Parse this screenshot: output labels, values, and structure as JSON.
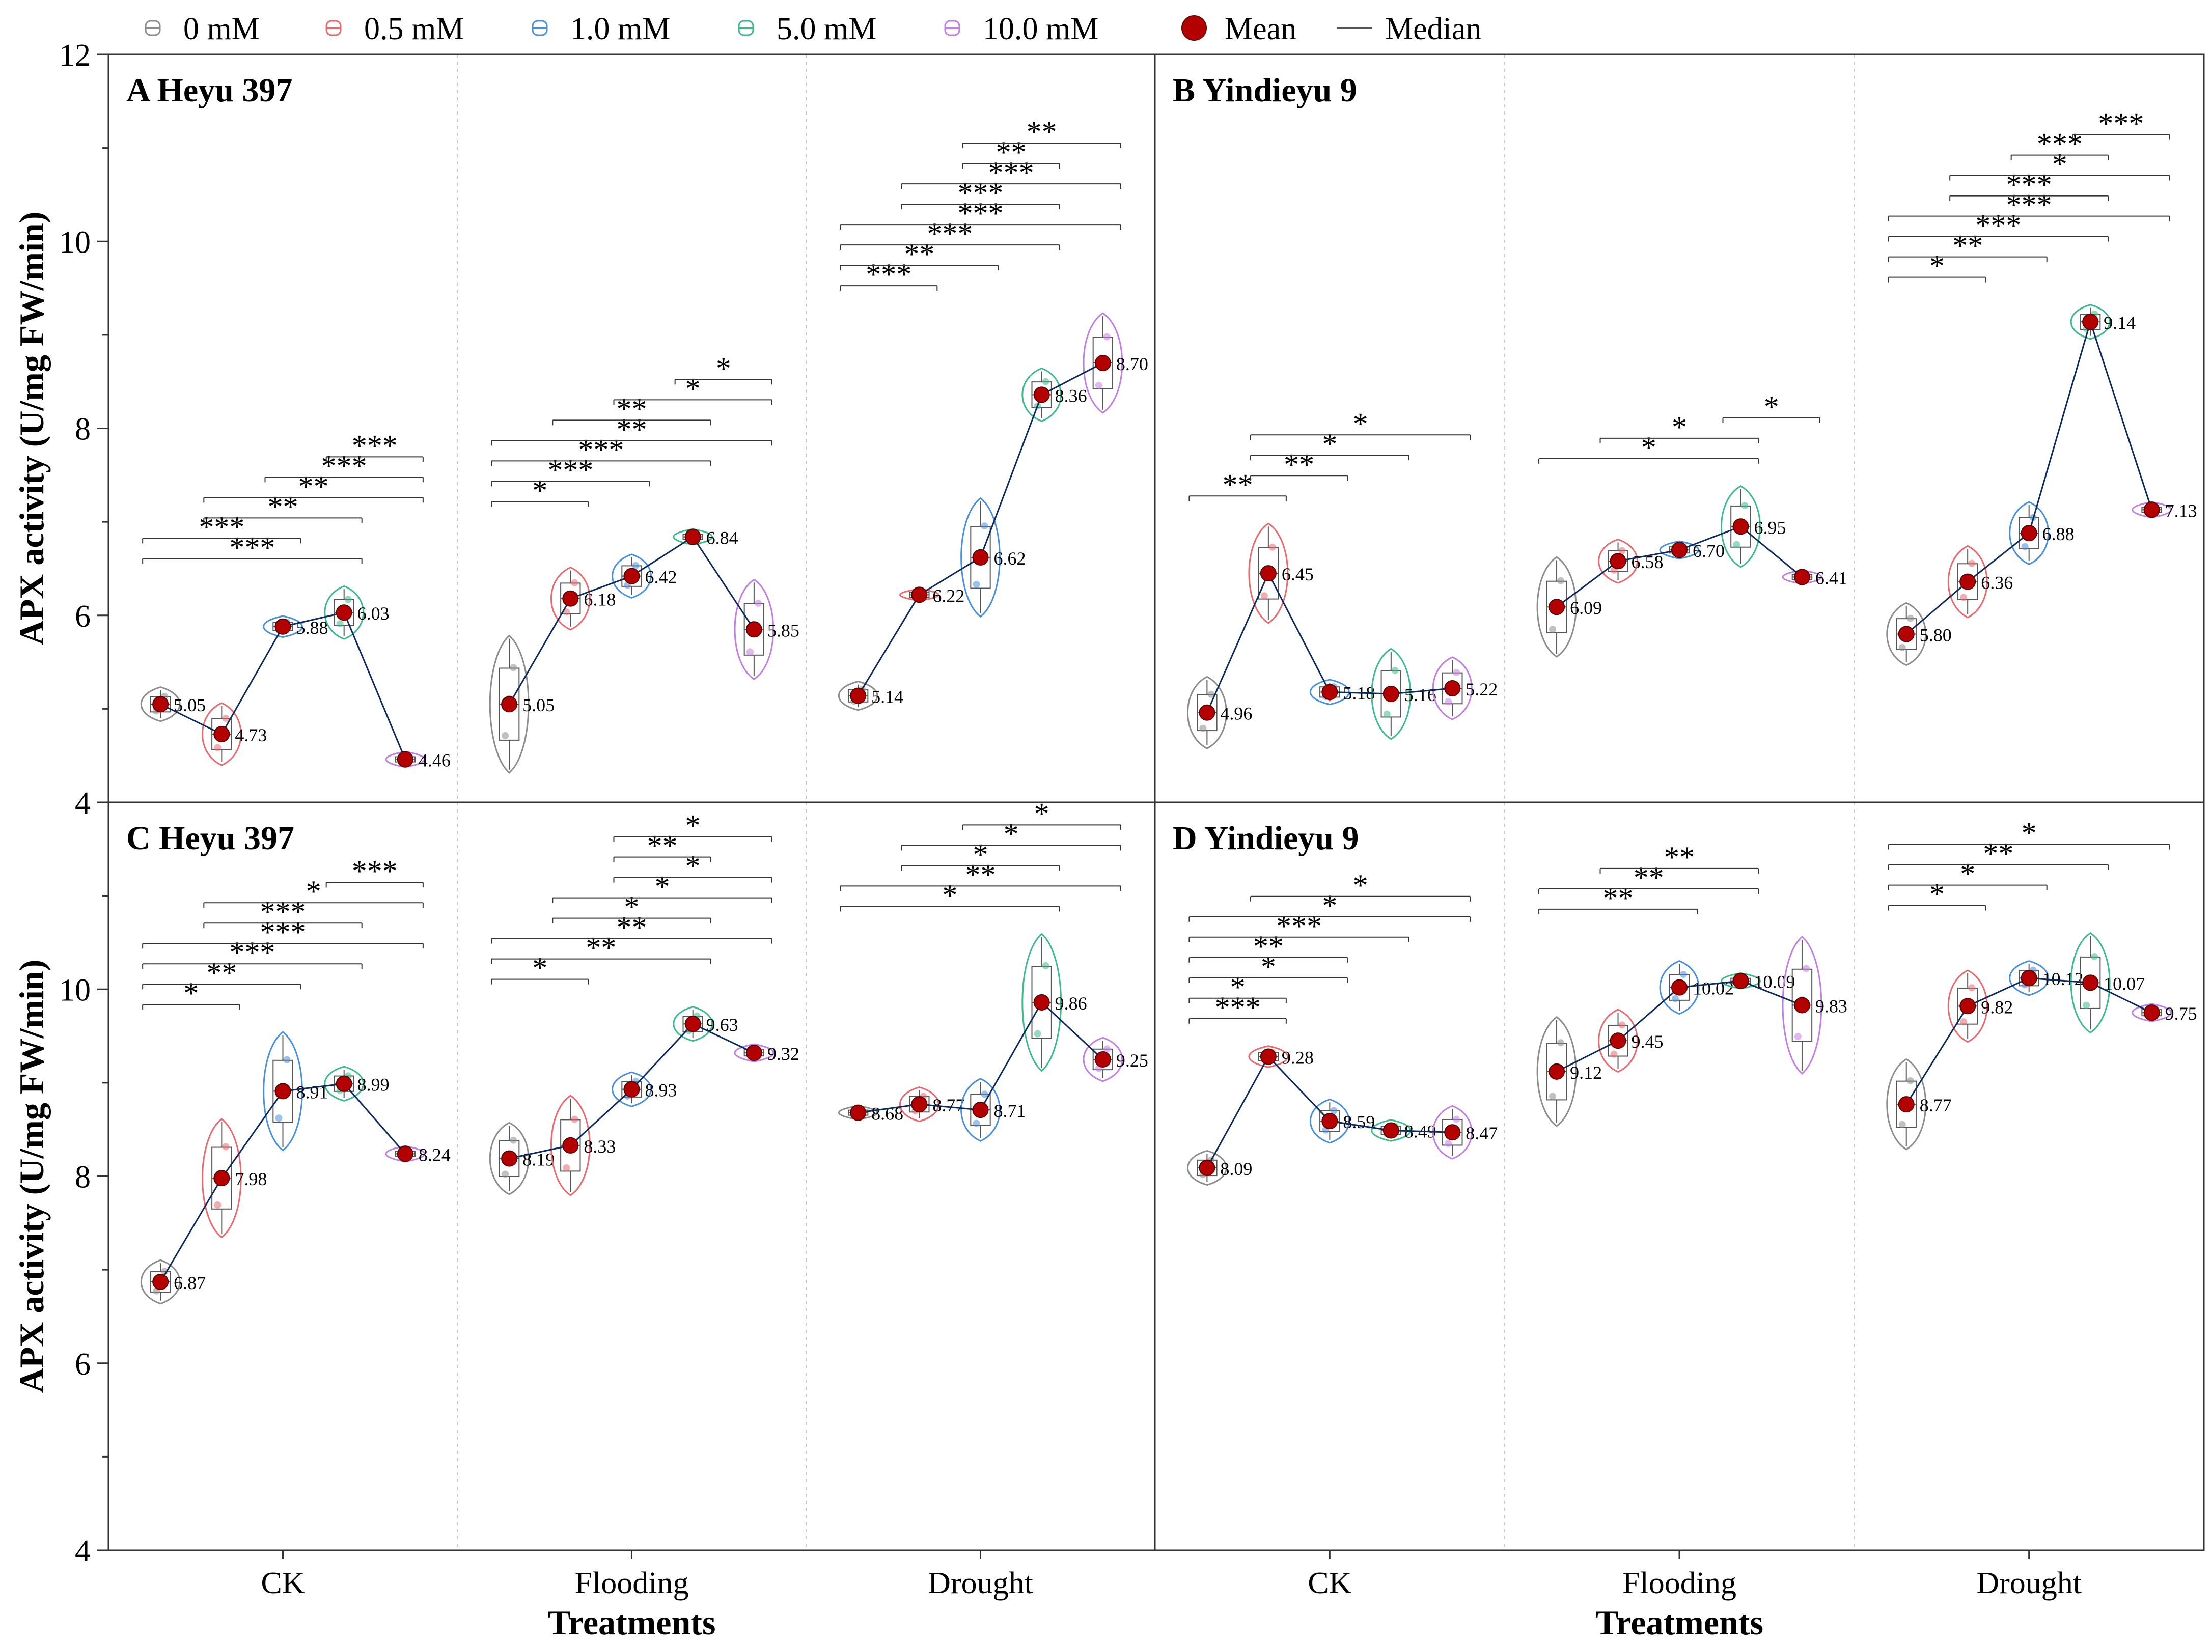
{
  "chart_data": {
    "type": "violin-box",
    "legend": {
      "position": "top",
      "items": [
        {
          "label": "0 mM",
          "color": "#8c8c8c"
        },
        {
          "label": "0.5 mM",
          "color": "#e8696f"
        },
        {
          "label": "1.0 mM",
          "color": "#4a90d9"
        },
        {
          "label": "5.0 mM",
          "color": "#3cba8c"
        },
        {
          "label": "10.0 mM",
          "color": "#c27ee0"
        },
        {
          "label": "Mean",
          "color": "#b30000"
        },
        {
          "label": "Median",
          "color": "#555555"
        }
      ]
    },
    "ylabel": "APX activity (U/mg FW/min)",
    "xlabel": "Treatments",
    "ylim": [
      4,
      12
    ],
    "yticks": [
      "4",
      "6",
      "8",
      "10",
      "12"
    ],
    "categories": [
      "CK",
      "Flooding",
      "Drought"
    ],
    "panels": [
      {
        "title": "A Heyu 397",
        "values": [
          [
            5.05,
            4.73,
            5.88,
            6.03,
            4.46
          ],
          [
            5.05,
            6.18,
            6.42,
            6.84,
            5.85
          ],
          [
            5.14,
            6.22,
            6.62,
            8.36,
            8.7
          ]
        ],
        "labels": [
          [
            "5.05",
            "4.73",
            "5.88",
            "6.03",
            "4.46"
          ],
          [
            "5.05",
            "6.18",
            "6.42",
            "6.84",
            "5.85"
          ],
          [
            "5.14",
            "6.22",
            "6.62",
            "8.36",
            "8.70"
          ]
        ],
        "spreads": [
          [
            0.15,
            0.3,
            0.08,
            0.25,
            0.05
          ],
          [
            0.7,
            0.3,
            0.2,
            0.05,
            0.5
          ],
          [
            0.12,
            0.03,
            0.6,
            0.25,
            0.5
          ]
        ],
        "significance": [
          [
            [
              0,
              3,
              "***"
            ],
            [
              0,
              2,
              "***"
            ],
            [
              1,
              3,
              "**"
            ],
            [
              1,
              4,
              "**"
            ],
            [
              2,
              4,
              "***"
            ],
            [
              3,
              4,
              "***"
            ]
          ],
          [
            [
              0,
              1,
              "*"
            ],
            [
              0,
              2,
              "***"
            ],
            [
              0,
              3,
              "***"
            ],
            [
              0,
              4,
              "**"
            ],
            [
              1,
              3,
              "**"
            ],
            [
              2,
              4,
              "*"
            ],
            [
              3,
              4,
              "*"
            ]
          ],
          [
            [
              0,
              1,
              "***"
            ],
            [
              0,
              2,
              "**"
            ],
            [
              0,
              3,
              "***"
            ],
            [
              0,
              4,
              "***"
            ],
            [
              1,
              3,
              "***"
            ],
            [
              1,
              4,
              "***"
            ],
            [
              2,
              3,
              "**"
            ],
            [
              2,
              4,
              "**"
            ]
          ]
        ]
      },
      {
        "title": "B Yindieyu 9",
        "values": [
          [
            4.96,
            6.45,
            5.18,
            5.16,
            5.22
          ],
          [
            6.09,
            6.58,
            6.7,
            6.95,
            6.41
          ],
          [
            5.8,
            6.36,
            6.88,
            9.14,
            7.13
          ]
        ],
        "labels": [
          [
            "4.96",
            "6.45",
            "5.18",
            "5.16",
            "5.22"
          ],
          [
            "6.09",
            "6.58",
            "6.70",
            "6.95",
            "6.41"
          ],
          [
            "5.80",
            "6.36",
            "6.88",
            "9.14",
            "7.13"
          ]
        ],
        "spreads": [
          [
            0.35,
            0.5,
            0.1,
            0.45,
            0.3
          ],
          [
            0.5,
            0.2,
            0.06,
            0.4,
            0.04
          ],
          [
            0.3,
            0.35,
            0.3,
            0.15,
            0.05
          ]
        ],
        "significance": [
          [
            [
              0,
              1,
              "**"
            ],
            [
              1,
              2,
              "**"
            ],
            [
              1,
              3,
              "*"
            ],
            [
              1,
              4,
              "*"
            ]
          ],
          [
            [
              0,
              3,
              "*"
            ],
            [
              1,
              3,
              "*"
            ],
            [
              3,
              4,
              "*"
            ]
          ],
          [
            [
              0,
              1,
              "*"
            ],
            [
              0,
              2,
              "**"
            ],
            [
              0,
              3,
              "***"
            ],
            [
              0,
              4,
              "***"
            ],
            [
              1,
              3,
              "***"
            ],
            [
              1,
              4,
              "*"
            ],
            [
              2,
              3,
              "***"
            ],
            [
              3,
              4,
              "***"
            ]
          ]
        ]
      },
      {
        "title": "C Heyu 397",
        "values": [
          [
            6.87,
            7.98,
            8.91,
            8.99,
            8.24
          ],
          [
            8.19,
            8.33,
            8.93,
            9.63,
            9.32
          ],
          [
            8.68,
            8.77,
            8.71,
            9.86,
            9.25
          ]
        ],
        "labels": [
          [
            "6.87",
            "7.98",
            "8.91",
            "8.99",
            "8.24"
          ],
          [
            "8.19",
            "8.33",
            "8.93",
            "9.63",
            "9.32"
          ],
          [
            "8.68",
            "8.77",
            "8.71",
            "9.86",
            "9.25"
          ]
        ],
        "spreads": [
          [
            0.2,
            0.6,
            0.6,
            0.15,
            0.05
          ],
          [
            0.35,
            0.5,
            0.15,
            0.15,
            0.06
          ],
          [
            0.04,
            0.15,
            0.3,
            0.7,
            0.2
          ]
        ],
        "significance": [
          [
            [
              0,
              1,
              "*"
            ],
            [
              0,
              2,
              "**"
            ],
            [
              0,
              3,
              "***"
            ],
            [
              0,
              4,
              "***"
            ],
            [
              1,
              3,
              "***"
            ],
            [
              1,
              4,
              "*"
            ],
            [
              3,
              4,
              "***"
            ]
          ],
          [
            [
              0,
              1,
              "*"
            ],
            [
              0,
              3,
              "**"
            ],
            [
              0,
              4,
              "**"
            ],
            [
              1,
              3,
              "*"
            ],
            [
              1,
              4,
              "*"
            ],
            [
              2,
              4,
              "*"
            ],
            [
              2,
              3,
              "**"
            ],
            [
              2,
              4,
              "*"
            ]
          ],
          [
            [
              0,
              3,
              "*"
            ],
            [
              0,
              4,
              "**"
            ],
            [
              1,
              3,
              "*"
            ],
            [
              1,
              4,
              "*"
            ],
            [
              2,
              4,
              "*"
            ]
          ]
        ]
      },
      {
        "title": "D Yindieyu 9",
        "values": [
          [
            8.09,
            9.28,
            8.59,
            8.49,
            8.47
          ],
          [
            9.12,
            9.45,
            10.02,
            10.09,
            9.83
          ],
          [
            8.77,
            9.82,
            10.12,
            10.07,
            9.75
          ]
        ],
        "labels": [
          [
            "8.09",
            "9.28",
            "8.59",
            "8.49",
            "8.47"
          ],
          [
            "9.12",
            "9.45",
            "10.02",
            "10.09",
            "9.83"
          ],
          [
            "8.77",
            "9.82",
            "10.12",
            "10.07",
            "9.75"
          ]
        ],
        "spreads": [
          [
            0.15,
            0.08,
            0.2,
            0.08,
            0.25
          ],
          [
            0.55,
            0.3,
            0.25,
            0.05,
            0.7
          ],
          [
            0.45,
            0.35,
            0.15,
            0.5,
            0.06
          ]
        ],
        "significance": [
          [
            [
              0,
              1,
              "***"
            ],
            [
              0,
              1,
              "*"
            ],
            [
              0,
              2,
              "*"
            ],
            [
              0,
              2,
              "**"
            ],
            [
              0,
              3,
              "***"
            ],
            [
              0,
              4,
              "*"
            ],
            [
              1,
              4,
              "*"
            ]
          ],
          [
            [
              0,
              2,
              "**"
            ],
            [
              0,
              3,
              "**"
            ],
            [
              1,
              3,
              "**"
            ]
          ],
          [
            [
              0,
              1,
              "*"
            ],
            [
              0,
              2,
              "*"
            ],
            [
              0,
              3,
              "**"
            ],
            [
              0,
              4,
              "*"
            ]
          ]
        ]
      }
    ]
  }
}
